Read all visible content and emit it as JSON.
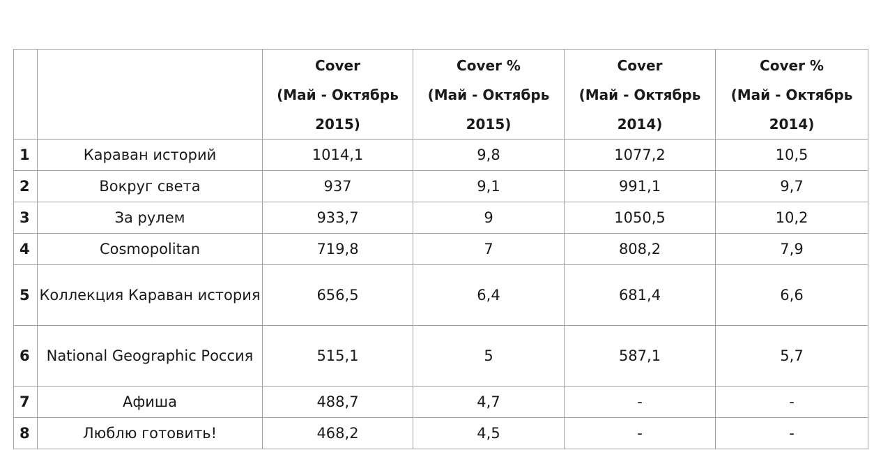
{
  "table": {
    "headers": [
      {
        "lines": [
          "",
          "",
          ""
        ]
      },
      {
        "lines": [
          "",
          "",
          ""
        ]
      },
      {
        "lines": [
          "Cover",
          "(Май - Октябрь",
          "2015)"
        ]
      },
      {
        "lines": [
          "Cover %",
          "(Май - Октябрь",
          "2015)"
        ]
      },
      {
        "lines": [
          "Cover",
          "(Май - Октябрь",
          "2014)"
        ]
      },
      {
        "lines": [
          "Cover %",
          "(Май - Октябрь",
          "2014)"
        ]
      }
    ],
    "rows": [
      {
        "rank": "1",
        "title": "Караван историй",
        "cover_2015": "1014,1",
        "pct_2015": "9,8",
        "cover_2014": "1077,2",
        "pct_2014": "10,5"
      },
      {
        "rank": "2",
        "title": "Вокруг света",
        "cover_2015": "937",
        "pct_2015": "9,1",
        "cover_2014": "991,1",
        "pct_2014": "9,7"
      },
      {
        "rank": "3",
        "title": "За рулем",
        "cover_2015": "933,7",
        "pct_2015": "9",
        "cover_2014": "1050,5",
        "pct_2014": "10,2"
      },
      {
        "rank": "4",
        "title": "Cosmopolitan",
        "cover_2015": "719,8",
        "pct_2015": "7",
        "cover_2014": "808,2",
        "pct_2014": "7,9"
      },
      {
        "rank": "5",
        "title": "Коллекция Караван история",
        "cover_2015": "656,5",
        "pct_2015": "6,4",
        "cover_2014": "681,4",
        "pct_2014": "6,6"
      },
      {
        "rank": "6",
        "title": "National Geographic Россия",
        "cover_2015": "515,1",
        "pct_2015": "5",
        "cover_2014": "587,1",
        "pct_2014": "5,7"
      },
      {
        "rank": "7",
        "title": "Афиша",
        "cover_2015": "488,7",
        "pct_2015": "4,7",
        "cover_2014": "-",
        "pct_2014": "-"
      },
      {
        "rank": "8",
        "title": "Люблю готовить!",
        "cover_2015": "468,2",
        "pct_2015": "4,5",
        "cover_2014": "-",
        "pct_2014": "-"
      }
    ]
  }
}
